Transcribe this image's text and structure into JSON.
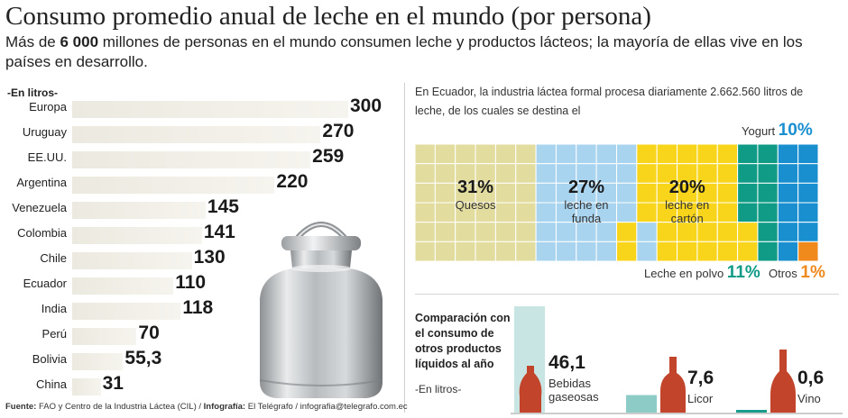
{
  "header": {
    "title": "Consumo promedio anual de leche en el mundo (por persona)",
    "subtitle_pre": "Más de ",
    "subtitle_bold": "6 000",
    "subtitle_post": " millones de personas en el mundo consumen leche y productos lácteos; la mayoría de ellas vive en los países en desarrollo."
  },
  "chart_data": [
    {
      "type": "bar",
      "orientation": "horizontal",
      "unit_label": "-En litros-",
      "categories": [
        "Europa",
        "Uruguay",
        "EE.UU.",
        "Argentina",
        "Venezuela",
        "Colombia",
        "Chile",
        "Ecuador",
        "India",
        "Perú",
        "Bolivia",
        "China"
      ],
      "values": [
        300,
        270,
        259,
        220,
        145,
        141,
        130,
        110,
        118,
        70,
        55.3,
        31
      ],
      "value_labels": [
        "300",
        "270",
        "259",
        "220",
        "145",
        "141",
        "130",
        "110",
        "118",
        "70",
        "55,3",
        "31"
      ],
      "xlim": [
        0,
        300
      ]
    },
    {
      "type": "treemap",
      "intro": "En Ecuador, la industria láctea formal procesa diariamente 2.662.560 litros de leche, de los cuales se destina el",
      "segments": [
        {
          "name": "Quesos",
          "value": 31,
          "label": "31%",
          "color": "#e2dc9f"
        },
        {
          "name": "leche en\nfunda",
          "value": 27,
          "label": "27%",
          "color": "#a9d4ef"
        },
        {
          "name": "leche en\ncartón",
          "value": 20,
          "label": "20%",
          "color": "#f8d51a"
        },
        {
          "name": "Leche en polvo",
          "value": 11,
          "label": "11%",
          "color": "#0f9b86"
        },
        {
          "name": "Yogurt",
          "value": 10,
          "label": "10%",
          "color": "#1a8fd0"
        },
        {
          "name": "Otros",
          "value": 1,
          "label": "1%",
          "color": "#f08a1d"
        }
      ]
    },
    {
      "type": "bar",
      "title": "Comparación con el consumo de otros productos líquidos al año",
      "unit_label": "-En litros-",
      "categories": [
        "Bebidas gaseosas",
        "Licor",
        "Vino"
      ],
      "values": [
        46.1,
        7.6,
        0.6
      ],
      "value_labels": [
        "46,1",
        "7,6",
        "0,6"
      ],
      "label_lines": [
        [
          "Bebidas",
          "gaseosas"
        ],
        [
          "Licor"
        ],
        [
          "Vino"
        ]
      ],
      "colors": {
        "bar": "#c9e5e3",
        "bottle": "#c2442a"
      }
    }
  ],
  "footer": {
    "source_label": "Fuente:",
    "source_text": " FAO y Centro de la Industria Láctea (CIL) / ",
    "info_label": "Infografía:",
    "info_text": " El Telégrafo / infografia@telegrafo.com.ec"
  }
}
